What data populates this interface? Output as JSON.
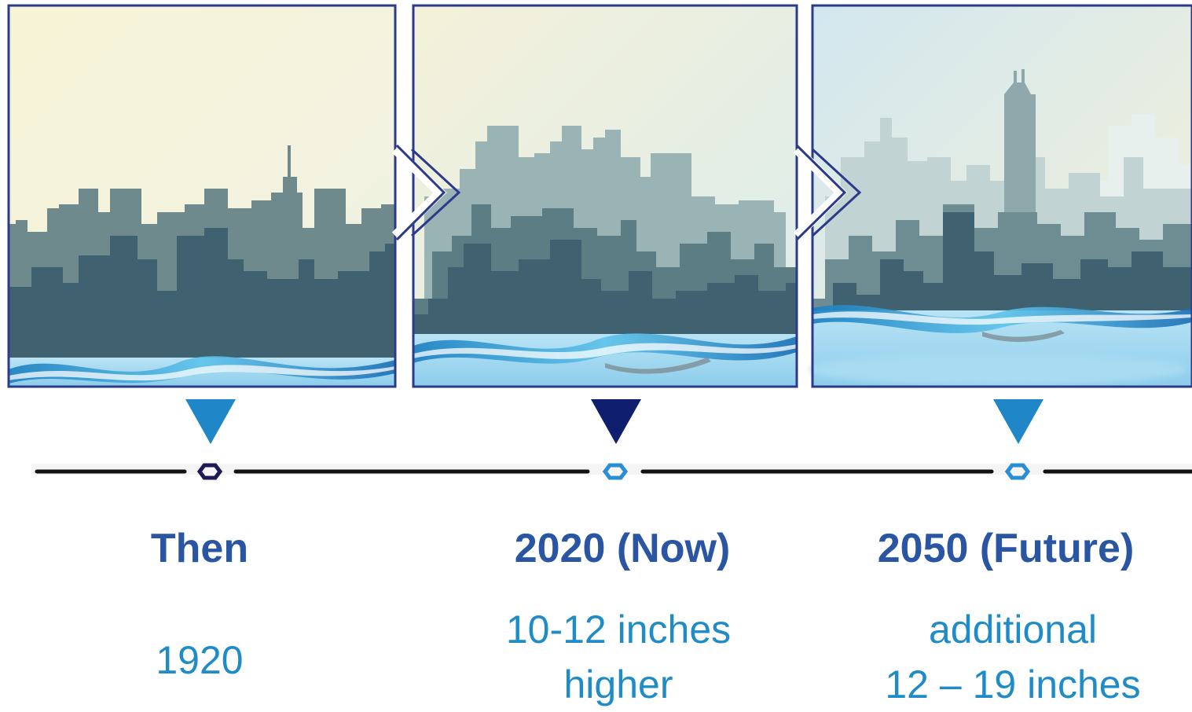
{
  "colors": {
    "title": "#2a55a3",
    "detail": "#1f8cc8",
    "frame": "#2c3a8a",
    "timeline": "#111111",
    "marker_dark": "#0f1e6e",
    "marker_light": "#1f86c8",
    "node_dark": "#1e1a55",
    "node_light": "#2a8fd0"
  },
  "panels": [
    {
      "id": "then",
      "sea_level": 0.08
    },
    {
      "id": "now",
      "sea_level": 0.14
    },
    {
      "id": "future",
      "sea_level": 0.23
    }
  ],
  "eras": [
    {
      "title": "Then",
      "detail_lines": [
        "1920"
      ]
    },
    {
      "title": "2020 (Now)",
      "detail_lines": [
        "10-12 inches",
        "higher"
      ]
    },
    {
      "title": "2050 (Future)",
      "detail_lines": [
        "additional",
        "12 – 19 inches"
      ]
    }
  ]
}
